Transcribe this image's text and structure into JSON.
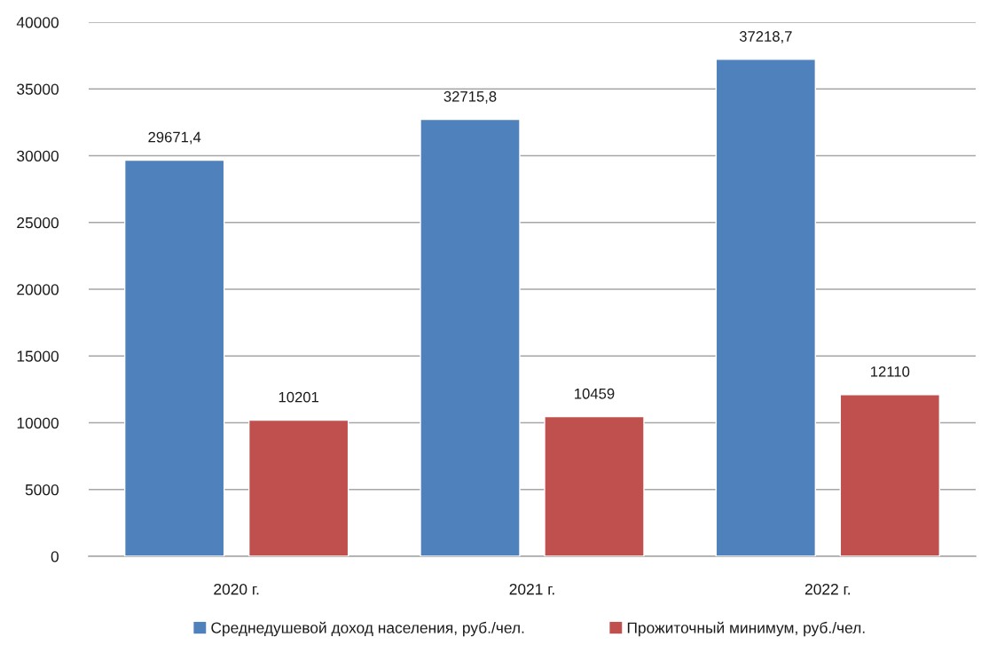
{
  "chart_data": {
    "type": "bar",
    "categories": [
      "2020 г.",
      "2021 г.",
      "2022 г."
    ],
    "series": [
      {
        "name": "Среднедушевой доход населения, руб./чел.",
        "color": "#4f81bd",
        "values": [
          29671.4,
          32715.8,
          37218.7
        ],
        "value_labels": [
          "29671,4",
          "32715,8",
          "37218,7"
        ]
      },
      {
        "name": "Прожиточный минимум, руб./чел.",
        "color": "#c0504d",
        "values": [
          10201,
          10459,
          12110
        ],
        "value_labels": [
          "10201",
          "10459",
          "12110"
        ]
      }
    ],
    "ylim": [
      0,
      40000
    ],
    "yticks": [
      0,
      5000,
      10000,
      15000,
      20000,
      25000,
      30000,
      35000,
      40000
    ],
    "grid": "y",
    "legend": "bottom"
  }
}
